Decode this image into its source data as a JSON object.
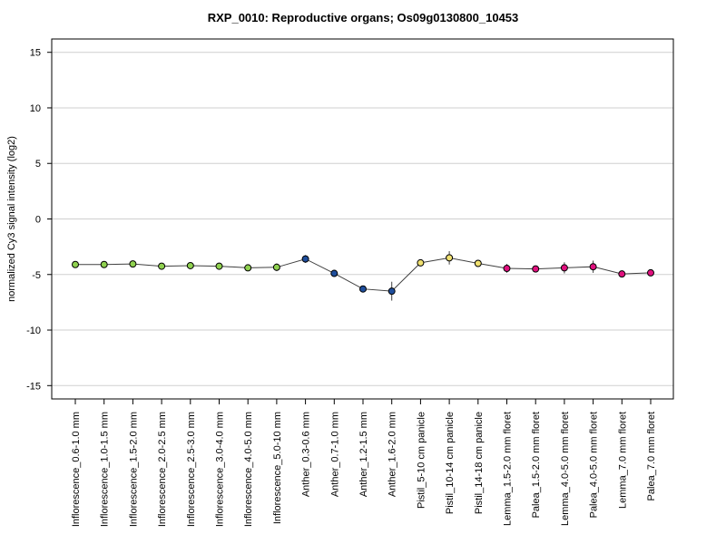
{
  "chart_data": {
    "type": "line",
    "title": "RXP_0010: Reproductive organs; Os09g0130800_10453",
    "xlabel": "",
    "ylabel": "normalized Cy3 signal intensity (log2)",
    "ylim": [
      -16.2,
      16.2
    ],
    "yticks": [
      -15,
      -10,
      -5,
      0,
      5,
      10,
      15
    ],
    "grid": true,
    "categories": [
      "Inflorescence_0.6-1.0 mm",
      "Inflorescence_1.0-1.5 mm",
      "Inflorescence_1.5-2.0 mm",
      "Inflorescence_2.0-2.5 mm",
      "Inflorescence_2.5-3.0 mm",
      "Inflorescence_3.0-4.0 mm",
      "Inflorescence_4.0-5.0 mm",
      "Inflorescence_5.0-10 mm",
      "Anther_0.3-0.6 mm",
      "Anther_0.7-1.0 mm",
      "Anther_1.2-1.5 mm",
      "Anther_1.6-2.0 mm",
      "Pistil_5-10 cm panicle",
      "Pistil_10-14 cm panicle",
      "Pistil_14-18 cm panicle",
      "Lemma_1.5-2.0 mm floret",
      "Palea_1.5-2.0 mm floret",
      "Lemma_4.0-5.0 mm floret",
      "Palea_4.0-5.0 mm floret",
      "Lemma_7.0 mm floret",
      "Palea_7.0 mm floret"
    ],
    "values": [
      -4.1,
      -4.1,
      -4.05,
      -4.25,
      -4.2,
      -4.25,
      -4.4,
      -4.35,
      -3.6,
      -4.9,
      -6.3,
      -6.5,
      -3.95,
      -3.5,
      -4.0,
      -4.45,
      -4.5,
      -4.4,
      -4.3,
      -4.95,
      -4.85
    ],
    "errors": [
      0.1,
      0.1,
      0.15,
      0.1,
      0.1,
      0.3,
      0.15,
      0.35,
      0.35,
      0.3,
      0.3,
      0.85,
      0.2,
      0.6,
      0.3,
      0.4,
      0.15,
      0.5,
      0.55,
      0.15,
      0.3
    ],
    "point_colors": [
      "#8fd14f",
      "#8fd14f",
      "#8fd14f",
      "#8fd14f",
      "#8fd14f",
      "#8fd14f",
      "#8fd14f",
      "#8fd14f",
      "#1f4e9c",
      "#1f4e9c",
      "#1f4e9c",
      "#1f4e9c",
      "#f0e070",
      "#f0e070",
      "#f0e070",
      "#e0107e",
      "#e0107e",
      "#e0107e",
      "#e0107e",
      "#e0107e",
      "#e0107e"
    ],
    "line_color": "#404040",
    "grid_color": "#cfcfcf"
  }
}
